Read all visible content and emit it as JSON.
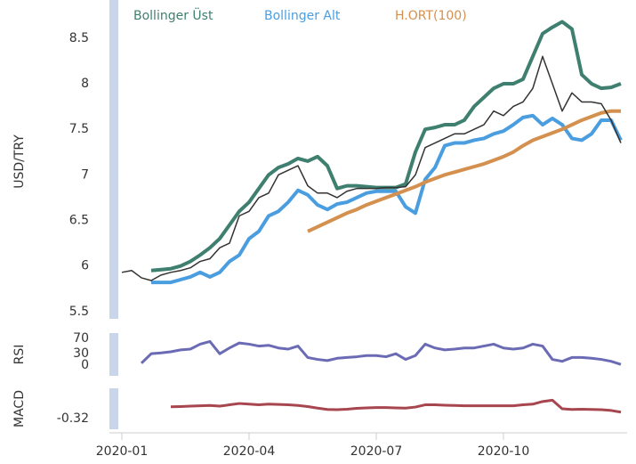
{
  "chart_data": [
    {
      "type": "line",
      "ylabel": "USD/TRY",
      "ylim": [
        5.42,
        8.87
      ],
      "yticks": [
        5.5,
        6,
        6.5,
        7,
        7.5,
        8,
        8.5
      ],
      "color": "#333333",
      "values": [
        5.93,
        5.95,
        5.87,
        5.84,
        5.9,
        5.93,
        5.95,
        5.98,
        6.05,
        6.08,
        6.2,
        6.25,
        6.55,
        6.6,
        6.75,
        6.8,
        7.0,
        7.05,
        7.1,
        6.88,
        6.8,
        6.8,
        6.75,
        6.82,
        6.85,
        6.85,
        6.85,
        6.86,
        6.86,
        6.87,
        7.0,
        7.3,
        7.35,
        7.4,
        7.45,
        7.45,
        7.5,
        7.55,
        7.7,
        7.65,
        7.75,
        7.8,
        7.95,
        8.3,
        8.0,
        7.7,
        7.9,
        7.8,
        7.8,
        7.78,
        7.6,
        7.35
      ],
      "series": [
        {
          "name": "Bollinger Üst",
          "color": "#3f7f6f",
          "values": [
            null,
            null,
            null,
            5.95,
            5.96,
            5.97,
            6.0,
            6.05,
            6.12,
            6.2,
            6.3,
            6.45,
            6.6,
            6.7,
            6.85,
            7.0,
            7.08,
            7.12,
            7.18,
            7.15,
            7.2,
            7.1,
            6.85,
            6.88,
            6.88,
            6.87,
            6.86,
            6.86,
            6.86,
            6.9,
            7.25,
            7.5,
            7.52,
            7.55,
            7.55,
            7.6,
            7.75,
            7.85,
            7.95,
            8.0,
            8.0,
            8.05,
            8.3,
            8.55,
            8.62,
            8.68,
            8.6,
            8.1,
            8.0,
            7.95,
            7.96,
            8.0
          ]
        },
        {
          "name": "Bollinger Alt",
          "color": "#4a9ee0",
          "values": [
            null,
            null,
            null,
            5.82,
            5.82,
            5.82,
            5.85,
            5.88,
            5.93,
            5.88,
            5.93,
            6.05,
            6.12,
            6.3,
            6.38,
            6.55,
            6.6,
            6.7,
            6.83,
            6.78,
            6.67,
            6.62,
            6.68,
            6.7,
            6.75,
            6.8,
            6.82,
            6.82,
            6.82,
            6.65,
            6.58,
            6.95,
            7.08,
            7.32,
            7.35,
            7.35,
            7.38,
            7.4,
            7.45,
            7.48,
            7.55,
            7.63,
            7.65,
            7.55,
            7.62,
            7.55,
            7.4,
            7.38,
            7.45,
            7.6,
            7.6,
            7.38
          ]
        },
        {
          "name": "H.ORT(100)",
          "color": "#d4904e",
          "values": [
            null,
            null,
            null,
            null,
            null,
            null,
            null,
            null,
            null,
            null,
            null,
            null,
            null,
            null,
            null,
            null,
            null,
            null,
            null,
            6.38,
            6.43,
            6.48,
            6.53,
            6.58,
            6.62,
            6.67,
            6.71,
            6.75,
            6.79,
            6.83,
            6.87,
            6.92,
            6.96,
            7.0,
            7.03,
            7.06,
            7.09,
            7.12,
            7.16,
            7.2,
            7.25,
            7.32,
            7.38,
            7.42,
            7.46,
            7.5,
            7.55,
            7.6,
            7.64,
            7.68,
            7.7,
            7.7
          ]
        }
      ]
    },
    {
      "type": "line",
      "ylabel": "RSI",
      "ylim": [
        -28,
        84
      ],
      "yticks": [
        0,
        30,
        70
      ],
      "color": "#6b6bb5",
      "values": [
        null,
        null,
        5,
        30,
        32,
        35,
        40,
        42,
        55,
        62,
        30,
        45,
        58,
        55,
        50,
        52,
        45,
        42,
        50,
        20,
        15,
        12,
        18,
        20,
        22,
        25,
        25,
        22,
        30,
        15,
        25,
        55,
        45,
        40,
        42,
        45,
        45,
        50,
        55,
        45,
        42,
        45,
        55,
        50,
        15,
        10,
        20,
        20,
        18,
        15,
        10,
        2
      ]
    },
    {
      "type": "line",
      "ylabel": "MACD",
      "ylim": [
        -0.4,
        -0.09
      ],
      "yticks": [
        -0.32
      ],
      "color": "#a84650",
      "values": [
        null,
        null,
        null,
        null,
        null,
        -0.23,
        -0.228,
        -0.225,
        -0.222,
        -0.22,
        -0.225,
        -0.215,
        -0.205,
        -0.21,
        -0.215,
        -0.21,
        -0.212,
        -0.215,
        -0.22,
        -0.228,
        -0.24,
        -0.25,
        -0.252,
        -0.248,
        -0.242,
        -0.238,
        -0.236,
        -0.236,
        -0.238,
        -0.24,
        -0.232,
        -0.215,
        -0.215,
        -0.218,
        -0.22,
        -0.222,
        -0.222,
        -0.222,
        -0.222,
        -0.222,
        -0.222,
        -0.215,
        -0.21,
        -0.19,
        -0.18,
        -0.245,
        -0.25,
        -0.248,
        -0.25,
        -0.252,
        -0.258,
        -0.27
      ],
      "categories": [
        "2020-01",
        null,
        null,
        null,
        null,
        null,
        null,
        null,
        null,
        null,
        null,
        null,
        null,
        "2020-04",
        null,
        null,
        null,
        null,
        null,
        null,
        null,
        null,
        null,
        null,
        null,
        null,
        "2020-07",
        null,
        null,
        null,
        null,
        null,
        null,
        null,
        null,
        null,
        null,
        null,
        null,
        "2020-10",
        null,
        null,
        null,
        null,
        null,
        null,
        null,
        null,
        null,
        null,
        null,
        null
      ]
    }
  ]
}
